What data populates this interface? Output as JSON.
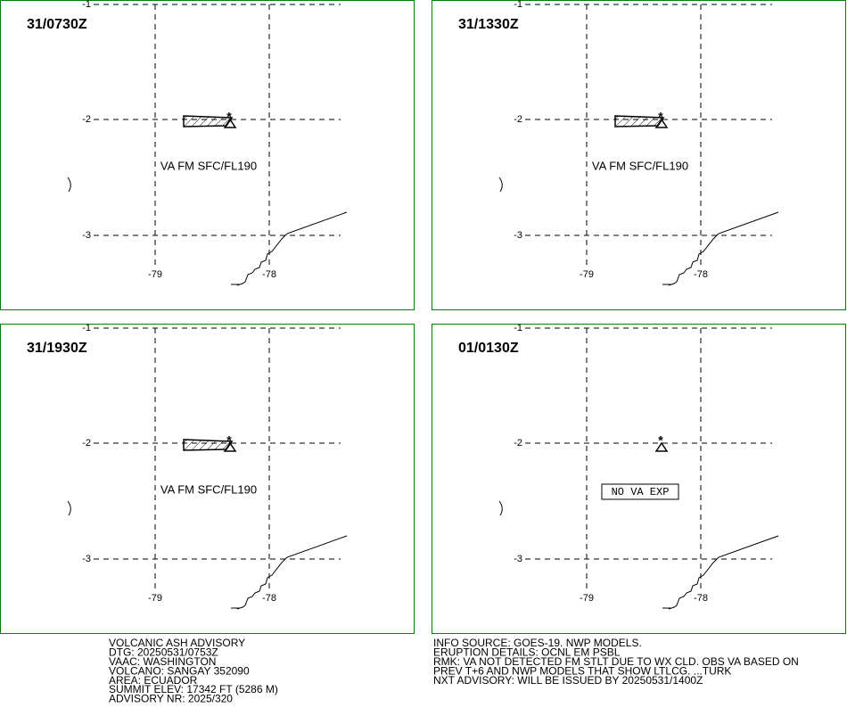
{
  "panels": [
    {
      "time": "31/0730Z",
      "label": "VA FM SFC/FL190",
      "boxed": false
    },
    {
      "time": "31/1330Z",
      "label": "VA FM SFC/FL190",
      "boxed": false
    },
    {
      "time": "31/1930Z",
      "label": "VA FM SFC/FL190",
      "boxed": false
    },
    {
      "time": "01/0130Z",
      "label": "NO VA EXP",
      "boxed": true
    }
  ],
  "lat_labels": [
    "-1",
    "-2",
    "-3"
  ],
  "lon_labels": [
    "-79",
    "-78"
  ],
  "footer_left": [
    "VOLCANIC ASH ADVISORY",
    "DTG: 20250531/0753Z",
    "VAAC: WASHINGTON",
    "VOLCANO: SANGAY 352090",
    "AREA: ECUADOR",
    "SUMMIT ELEV: 17342 FT (5286 M)",
    "ADVISORY NR: 2025/320"
  ],
  "footer_right": [
    "INFO SOURCE: GOES-19. NWP MODELS.",
    "ERUPTION DETAILS: OCNL EM PSBL",
    "RMK: VA NOT DETECTED FM STLT DUE TO WX CLD. OBS VA BASED ON",
    "PREV T+6 AND NWP MODELS THAT SHOW LTLCG. ...TURK",
    "NXT ADVISORY: WILL BE ISSUED BY 20250531/1400Z"
  ]
}
